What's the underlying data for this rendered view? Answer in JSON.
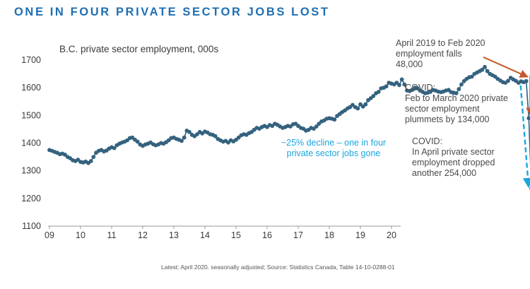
{
  "chart_data": {
    "type": "line",
    "title": "ONE IN FOUR PRIVATE SECTOR JOBS LOST",
    "subtitle": "B.C. private sector employment, 000s",
    "xlabel": "",
    "ylabel": "",
    "ylim": [
      1100,
      1700
    ],
    "y_ticks": [
      "1700",
      "1600",
      "1500",
      "1400",
      "1300",
      "1200",
      "1100"
    ],
    "x_ticks": [
      "09",
      "10",
      "11",
      "12",
      "13",
      "14",
      "15",
      "16",
      "17",
      "18",
      "19",
      "20"
    ],
    "x_start": 2009.0,
    "x_end": 2020.25,
    "series": [
      {
        "name": "B.C. private sector employment",
        "start": "2009-01",
        "values": [
          1375,
          1372,
          1368,
          1365,
          1360,
          1362,
          1358,
          1350,
          1345,
          1338,
          1335,
          1340,
          1332,
          1330,
          1333,
          1328,
          1335,
          1350,
          1365,
          1372,
          1375,
          1370,
          1373,
          1380,
          1385,
          1382,
          1392,
          1398,
          1402,
          1405,
          1410,
          1418,
          1420,
          1412,
          1405,
          1395,
          1390,
          1395,
          1398,
          1402,
          1396,
          1392,
          1395,
          1400,
          1398,
          1403,
          1410,
          1418,
          1420,
          1415,
          1412,
          1408,
          1420,
          1445,
          1440,
          1430,
          1425,
          1432,
          1440,
          1435,
          1442,
          1438,
          1432,
          1430,
          1425,
          1415,
          1410,
          1405,
          1408,
          1402,
          1410,
          1406,
          1412,
          1420,
          1428,
          1432,
          1430,
          1436,
          1440,
          1448,
          1455,
          1452,
          1458,
          1462,
          1458,
          1465,
          1462,
          1470,
          1466,
          1460,
          1455,
          1458,
          1462,
          1460,
          1468,
          1470,
          1462,
          1455,
          1452,
          1445,
          1448,
          1455,
          1452,
          1460,
          1470,
          1478,
          1482,
          1488,
          1490,
          1488,
          1485,
          1498,
          1505,
          1512,
          1518,
          1525,
          1530,
          1538,
          1530,
          1525,
          1540,
          1532,
          1540,
          1555,
          1562,
          1570,
          1580,
          1585,
          1598,
          1600,
          1605,
          1618,
          1615,
          1612,
          1618,
          1610,
          1630,
          1612,
          1590,
          1588,
          1592,
          1600,
          1598,
          1590,
          1585,
          1580,
          1582,
          1585,
          1592,
          1590,
          1586,
          1584,
          1586,
          1590,
          1592,
          1584,
          1582,
          1580,
          1595,
          1612,
          1624,
          1632,
          1638,
          1640,
          1650,
          1655,
          1660,
          1665,
          1675,
          1660,
          1650,
          1645,
          1640,
          1632,
          1626,
          1620,
          1618,
          1625,
          1636,
          1630,
          1625,
          1618,
          1623,
          1620,
          1624,
          1490,
          1236
        ]
      }
    ],
    "annotations": {
      "trend": "April 2019 to Feb 2020\nemployment falls\n48,000",
      "feb": "COVID:\nFeb to March 2020 private\nsector employment\nplummets by 134,000",
      "apr": "COVID:\nIn April private sector\nemployment dropped\nanother 254,000",
      "decline": "~25% decline – one in four\nprivate sector jobs gone"
    },
    "footnote": "Latest:  April 2020.  seasonally adjusted;     Source: Statistics Canada, Table 14-10-0288-01",
    "colors": {
      "title": "#1f6fb2",
      "line": "#2f5f7f",
      "marker": "#34627f",
      "arrow": "#c55a2b",
      "decline": "#1aa6de",
      "axis": "#999999"
    }
  }
}
